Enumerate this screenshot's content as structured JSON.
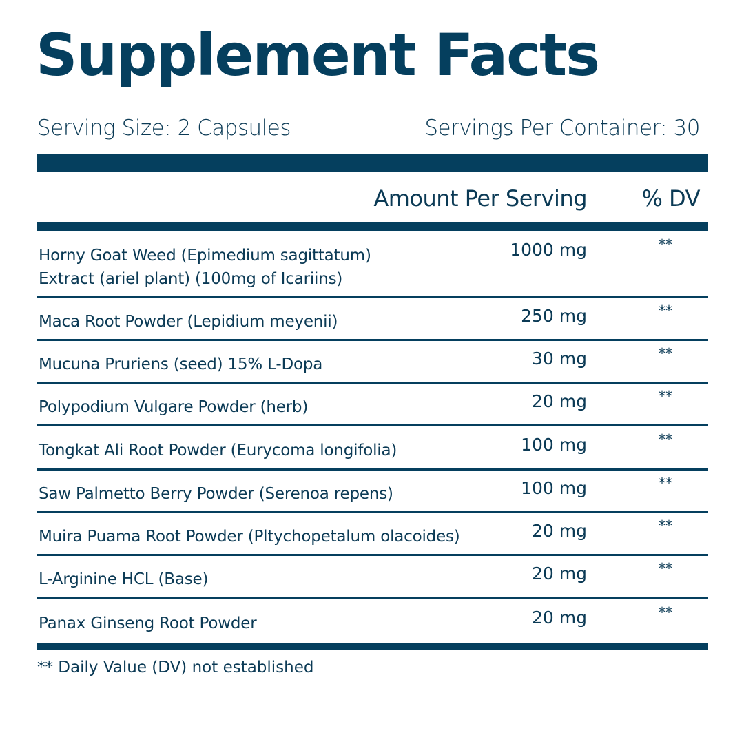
{
  "title": "Supplement Facts",
  "serving_size": "Serving Size:  2 Capsules",
  "servings_per_container": "Servings Per Container: 30",
  "columns": {
    "amount": "Amount Per Serving",
    "dv": "% DV"
  },
  "ingredients": [
    {
      "name": "Horny Goat Weed (Epimedium sagittatum)",
      "name2": "Extract (ariel plant) (100mg of Icariins)",
      "amount": "1000 mg",
      "dv": "**"
    },
    {
      "name": "Maca Root Powder (Lepidium meyenii)",
      "amount": "250 mg",
      "dv": "**"
    },
    {
      "name": "Mucuna Pruriens (seed) 15% L-Dopa",
      "amount": "30 mg",
      "dv": "**"
    },
    {
      "name": "Polypodium Vulgare Powder (herb)",
      "amount": "20 mg",
      "dv": "**"
    },
    {
      "name": "Tongkat Ali Root Powder (Eurycoma longifolia)",
      "amount": "100 mg",
      "dv": "**"
    },
    {
      "name": "Saw Palmetto Berry Powder (Serenoa repens)",
      "amount": "100 mg",
      "dv": "**"
    },
    {
      "name": "Muira Puama Root Powder (Pltychopetalum olacoides)",
      "amount": "20 mg",
      "dv": "**"
    },
    {
      "name": "L-Arginine HCL (Base)",
      "amount": "20 mg",
      "dv": "**"
    },
    {
      "name": "Panax Ginseng Root Powder",
      "amount": "20 mg",
      "dv": "**"
    }
  ],
  "footnote": "** Daily Value (DV) not established",
  "colors": {
    "accent": "#053f5e",
    "text": "#0b3a55"
  }
}
